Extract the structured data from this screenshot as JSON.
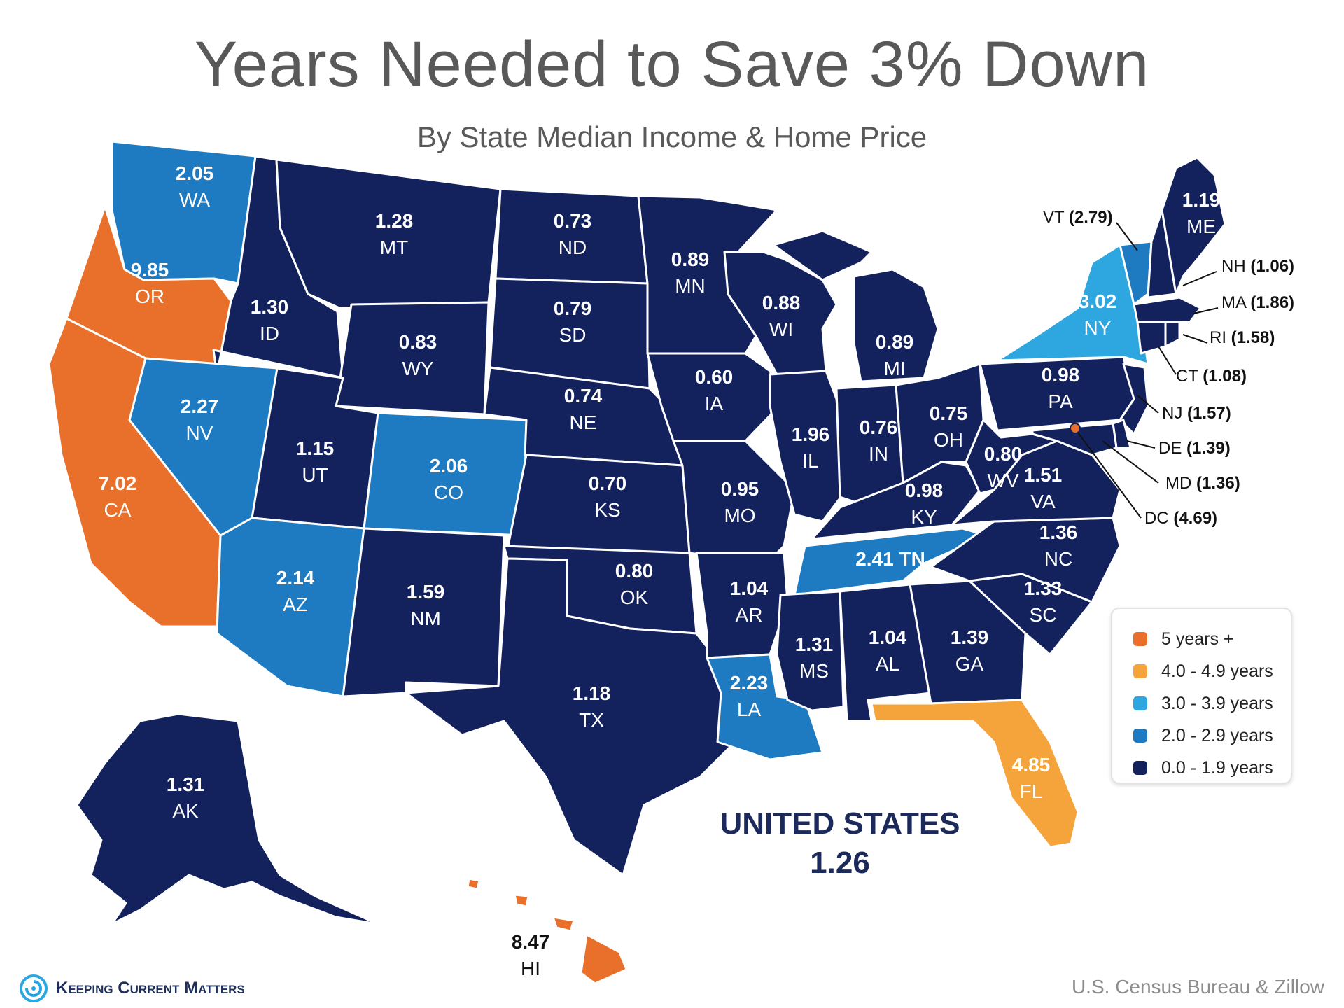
{
  "title": "Years Needed to Save 3% Down",
  "subtitle": "By State Median Income & Home Price",
  "colors": {
    "c5plus": "#e9702a",
    "c4": "#f4a43a",
    "c3": "#2ea7e0",
    "c2": "#1e7bc2",
    "c0": "#13215c",
    "label_light": "#ffffff",
    "label_dark": "#111111"
  },
  "legend": [
    {
      "label": "5 years +",
      "color": "#e9702a"
    },
    {
      "label": "4.0 - 4.9 years",
      "color": "#f4a43a"
    },
    {
      "label": "3.0 - 3.9 years",
      "color": "#2ea7e0"
    },
    {
      "label": "2.0 - 2.9 years",
      "color": "#1e7bc2"
    },
    {
      "label": "0.0 - 1.9 years",
      "color": "#13215c"
    }
  ],
  "states": {
    "WA": {
      "value": "2.05",
      "abbr": "WA"
    },
    "OR": {
      "value": "9.85",
      "abbr": "OR"
    },
    "CA": {
      "value": "7.02",
      "abbr": "CA"
    },
    "ID": {
      "value": "1.30",
      "abbr": "ID"
    },
    "NV": {
      "value": "2.27",
      "abbr": "NV"
    },
    "MT": {
      "value": "1.28",
      "abbr": "MT"
    },
    "WY": {
      "value": "0.83",
      "abbr": "WY"
    },
    "UT": {
      "value": "1.15",
      "abbr": "UT"
    },
    "AZ": {
      "value": "2.14",
      "abbr": "AZ"
    },
    "CO": {
      "value": "2.06",
      "abbr": "CO"
    },
    "NM": {
      "value": "1.59",
      "abbr": "NM"
    },
    "ND": {
      "value": "0.73",
      "abbr": "ND"
    },
    "SD": {
      "value": "0.79",
      "abbr": "SD"
    },
    "NE": {
      "value": "0.74",
      "abbr": "NE"
    },
    "KS": {
      "value": "0.70",
      "abbr": "KS"
    },
    "OK": {
      "value": "0.80",
      "abbr": "OK"
    },
    "TX": {
      "value": "1.18",
      "abbr": "TX"
    },
    "MN": {
      "value": "0.89",
      "abbr": "MN"
    },
    "IA": {
      "value": "0.60",
      "abbr": "IA"
    },
    "MO": {
      "value": "0.95",
      "abbr": "MO"
    },
    "AR": {
      "value": "1.04",
      "abbr": "AR"
    },
    "LA": {
      "value": "2.23",
      "abbr": "LA"
    },
    "WI": {
      "value": "0.88",
      "abbr": "WI"
    },
    "IL": {
      "value": "1.96",
      "abbr": "IL"
    },
    "MI": {
      "value": "0.89",
      "abbr": "MI"
    },
    "IN": {
      "value": "0.76",
      "abbr": "IN"
    },
    "OH": {
      "value": "0.75",
      "abbr": "OH"
    },
    "KY": {
      "value": "0.98",
      "abbr": "KY"
    },
    "TN": {
      "value": "2.41",
      "abbr": "TN"
    },
    "MS": {
      "value": "1.31",
      "abbr": "MS"
    },
    "AL": {
      "value": "1.04",
      "abbr": "AL"
    },
    "GA": {
      "value": "1.39",
      "abbr": "GA"
    },
    "FL": {
      "value": "4.85",
      "abbr": "FL"
    },
    "SC": {
      "value": "1.33",
      "abbr": "SC"
    },
    "NC": {
      "value": "1.36",
      "abbr": "NC"
    },
    "VA": {
      "value": "1.51",
      "abbr": "VA"
    },
    "WV": {
      "value": "0.80",
      "abbr": "WV"
    },
    "PA": {
      "value": "0.98",
      "abbr": "PA"
    },
    "NY": {
      "value": "3.02",
      "abbr": "NY"
    },
    "ME": {
      "value": "1.19",
      "abbr": "ME"
    },
    "AK": {
      "value": "1.31",
      "abbr": "AK"
    },
    "HI": {
      "value": "8.47",
      "abbr": "HI"
    }
  },
  "callouts": {
    "VT": {
      "abbr": "VT",
      "value": "(2.79)"
    },
    "NH": {
      "abbr": "NH",
      "value": "(1.06)"
    },
    "MA": {
      "abbr": "MA",
      "value": "(1.86)"
    },
    "RI": {
      "abbr": "RI",
      "value": "(1.58)"
    },
    "CT": {
      "abbr": "CT",
      "value": "(1.08)"
    },
    "NJ": {
      "abbr": "NJ",
      "value": "(1.57)"
    },
    "DE": {
      "abbr": "DE",
      "value": "(1.39)"
    },
    "MD": {
      "abbr": "MD",
      "value": "(1.36)"
    },
    "DC": {
      "abbr": "DC",
      "value": "(4.69)"
    }
  },
  "us_total": {
    "label": "UNITED STATES",
    "value": "1.26"
  },
  "brand": "Keeping Current Matters",
  "source": "U.S. Census Bureau & Zillow"
}
